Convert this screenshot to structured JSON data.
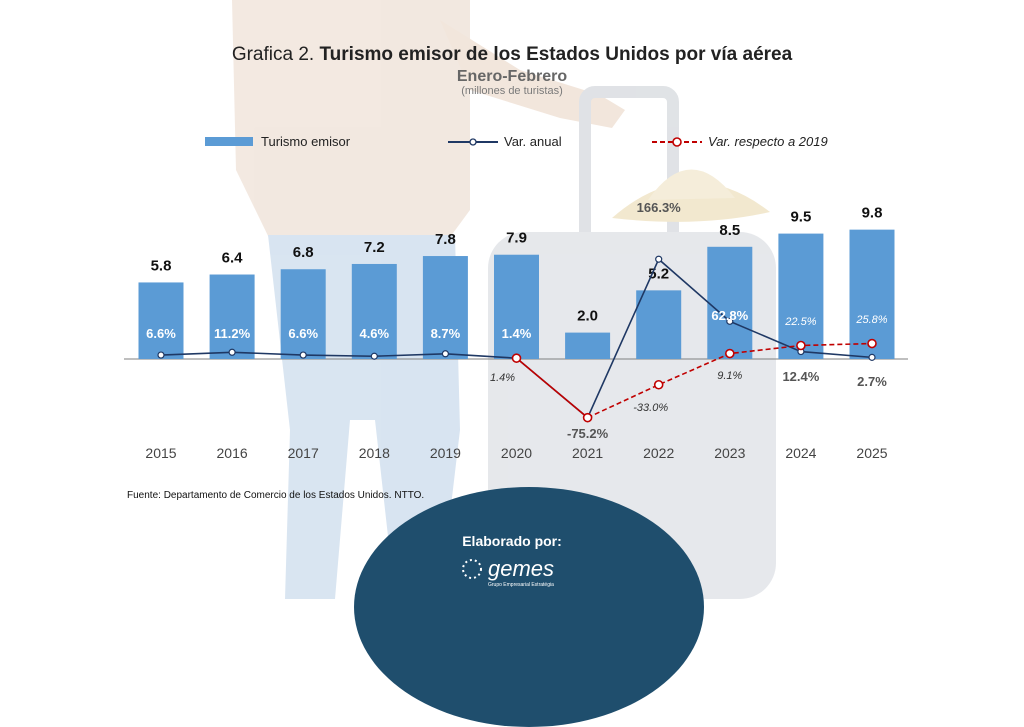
{
  "header": {
    "title_prefix": "Grafica 2.",
    "title_main": "Turismo emisor de los Estados Unidos por vía aérea",
    "subtitle": "Enero-Febrero",
    "unit": "(millones de turistas)"
  },
  "source": "Fuente: Departamento de Comercio de los Estados Unidos. NTTO.",
  "footer": {
    "label": "Elaborado por:",
    "logo_text": "gemes",
    "logo_tagline": "Grupo Empresarial Estratégia"
  },
  "colors": {
    "bar": "#5b9bd5",
    "annual_line": "#1f3864",
    "vs2019_line": "#c00000",
    "footer_bg": "#1f4e6d"
  },
  "chart_data": {
    "type": "bar",
    "categories": [
      "2015",
      "2016",
      "2017",
      "2018",
      "2019",
      "2020",
      "2021",
      "2022",
      "2023",
      "2024",
      "2025"
    ],
    "series": [
      {
        "name": "Turismo emisor",
        "type": "bar",
        "values": [
          5.8,
          6.4,
          6.8,
          7.2,
          7.8,
          7.9,
          2.0,
          5.2,
          8.5,
          9.5,
          9.8
        ],
        "labels": [
          "5.8",
          "6.4",
          "6.8",
          "7.2",
          "7.8",
          "7.9",
          "2.0",
          "5.2",
          "8.5",
          "9.5",
          "9.8"
        ]
      },
      {
        "name": "Var. anual",
        "type": "line",
        "values": [
          6.6,
          11.2,
          6.6,
          4.6,
          8.7,
          1.4,
          -75.2,
          166.3,
          62.8,
          12.4,
          2.7
        ],
        "labels": [
          "6.6%",
          "11.2%",
          "6.6%",
          "4.6%",
          "8.7%",
          "1.4%",
          "-75.2%",
          "166.3%",
          "62.8%",
          "12.4%",
          "2.7%"
        ]
      },
      {
        "name": "Var. respecto a 2019",
        "type": "line",
        "values": [
          null,
          null,
          null,
          null,
          null,
          1.4,
          -75.2,
          -33.0,
          9.1,
          22.5,
          25.8
        ],
        "labels": [
          null,
          null,
          null,
          null,
          null,
          "1.4%",
          "",
          "-33.0%",
          "9.1%",
          "22.5%",
          "25.8%"
        ]
      }
    ],
    "legend_position": "top",
    "grid": false
  }
}
